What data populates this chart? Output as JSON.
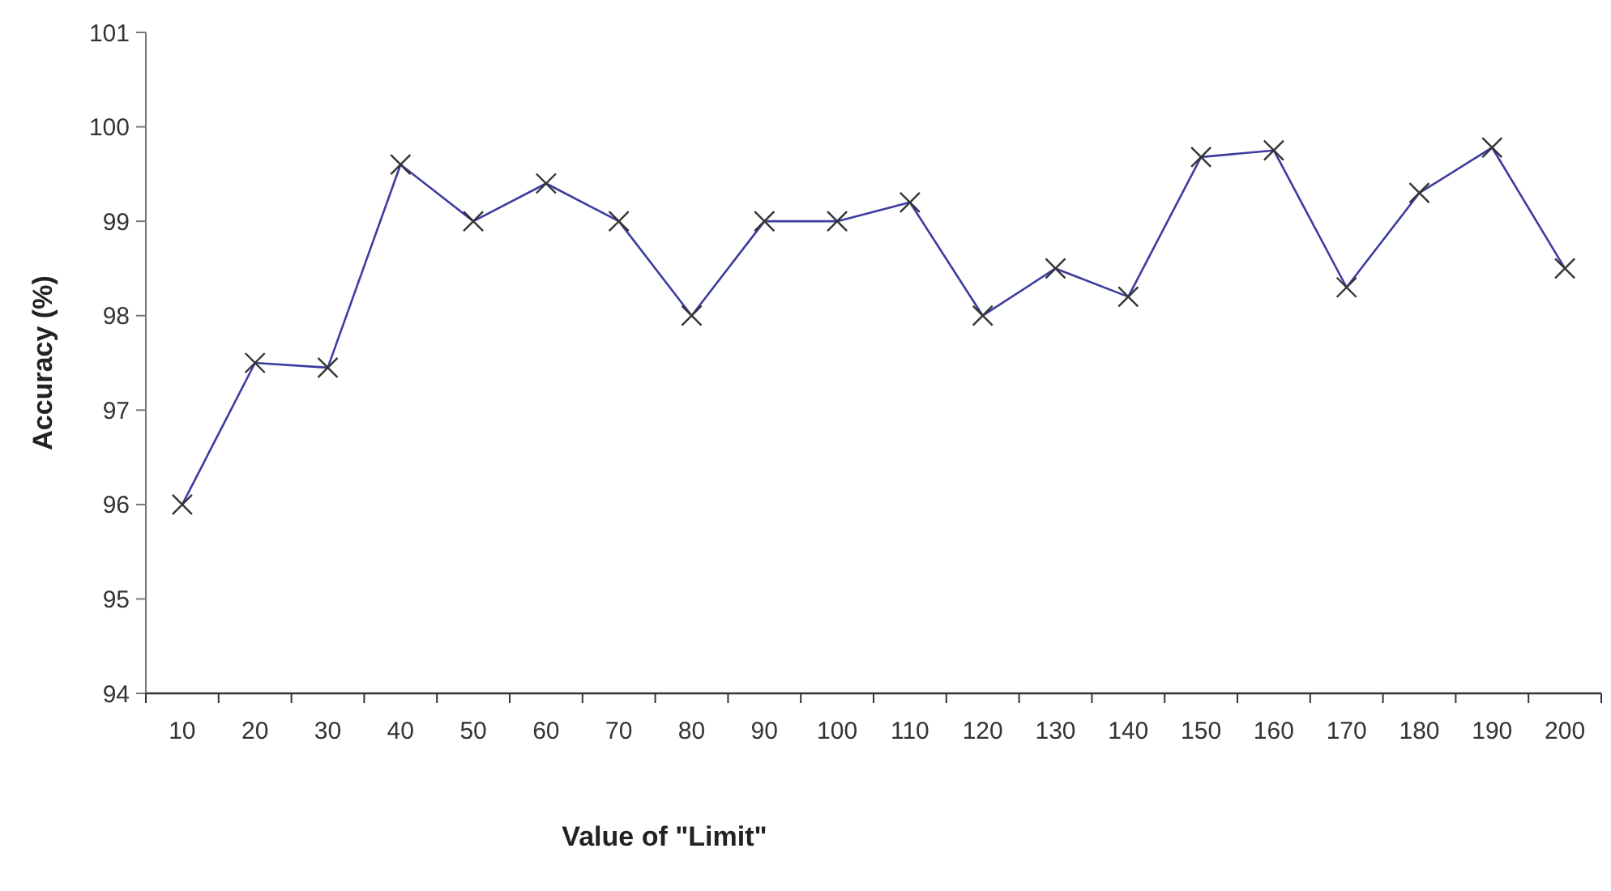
{
  "chart_data": {
    "type": "line",
    "xlabel": "Value of \"Limit\"",
    "ylabel": "Accuracy (%)",
    "categories": [
      "10",
      "20",
      "30",
      "40",
      "50",
      "60",
      "70",
      "80",
      "90",
      "100",
      "110",
      "120",
      "130",
      "140",
      "150",
      "160",
      "170",
      "180",
      "190",
      "200"
    ],
    "series": [
      {
        "color": "#3c3ca0",
        "values": [
          96,
          97.5,
          97.45,
          99.6,
          99,
          99.4,
          99,
          98,
          99,
          99,
          99.2,
          98,
          98.5,
          98.2,
          99.68,
          99.75,
          98.3,
          99.3,
          99.78,
          98.5
        ]
      }
    ],
    "ylim": [
      94,
      101
    ],
    "yticks": [
      94,
      95,
      96,
      97,
      98,
      99,
      100,
      101
    ],
    "marker": "cross",
    "grid": false
  }
}
